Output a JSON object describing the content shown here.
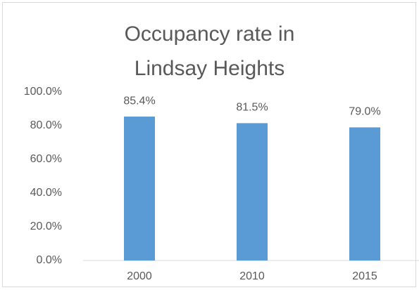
{
  "chart_data": {
    "type": "bar",
    "title": "Occupancy rate in Lindsay Heights",
    "categories": [
      "2000",
      "2010",
      "2015"
    ],
    "values": [
      85.4,
      81.5,
      79.0
    ],
    "value_labels": [
      "85.4%",
      "81.5%",
      "79.0%"
    ],
    "color": "#5b9bd5",
    "ylim": [
      0,
      100
    ],
    "yticks": [
      {
        "value": 0,
        "label": "0.0%"
      },
      {
        "value": 20,
        "label": "20.0%"
      },
      {
        "value": 40,
        "label": "40.0%"
      },
      {
        "value": 60,
        "label": "60.0%"
      },
      {
        "value": 80,
        "label": "80.0%"
      },
      {
        "value": 100,
        "label": "100.0%"
      }
    ],
    "grid": false
  }
}
